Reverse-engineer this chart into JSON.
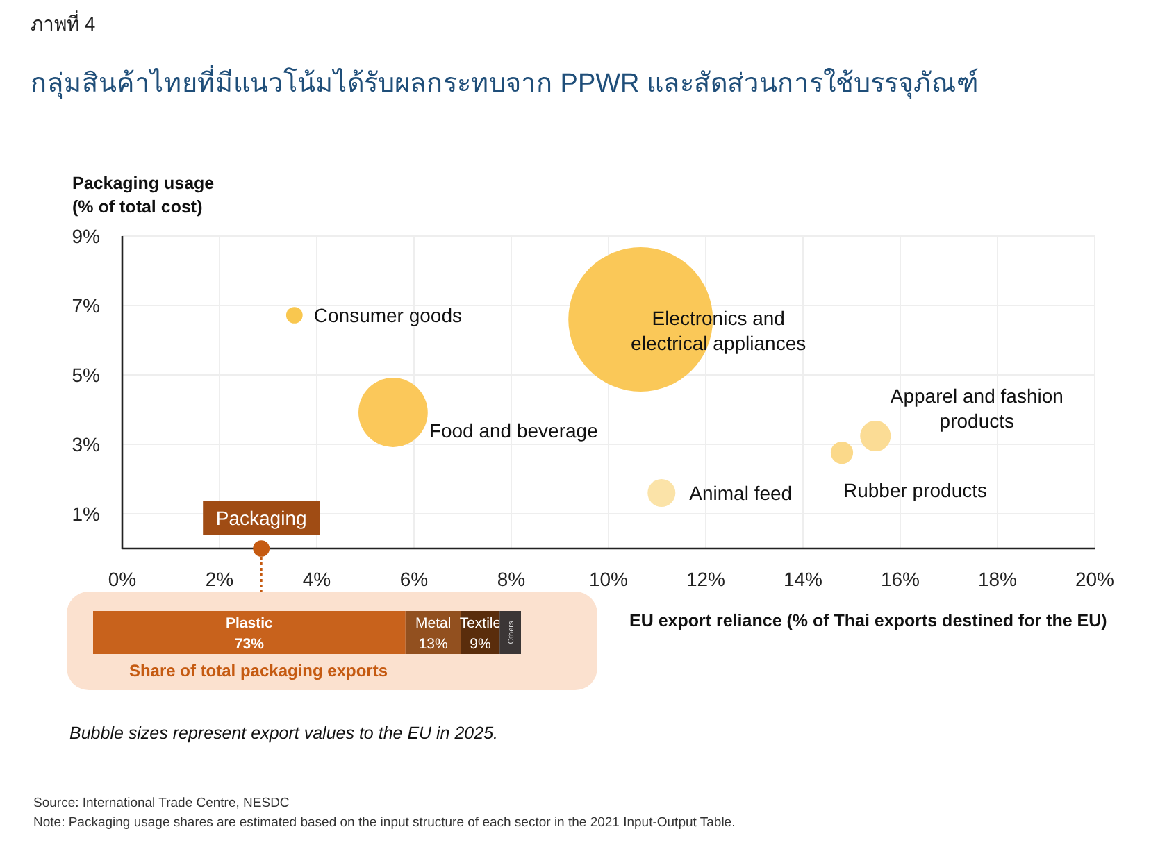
{
  "chart_data": [
    {
      "type": "bubble",
      "title": "กลุ่มสินค้าไทยที่มีแนวโน้มได้รับผลกระทบจาก PPWR และสัดส่วนการใช้บรรจุภัณฑ์",
      "xlabel": "EU export reliance (% of Thai exports destined for the EU)",
      "ylabel": "Packaging usage (% of total cost)",
      "annotations": [
        "ภาพที่ 4",
        "Bubble sizes represent export values to the EU in 2025.",
        "Source: International Trade Centre, NESDC",
        "Note: Packaging usage shares are estimated based on the input structure of each sector in the 2021 Input-Output Table."
      ],
      "xlim": [
        0,
        20
      ],
      "ylim": [
        0,
        9
      ],
      "grid": true,
      "xticks": [
        {
          "value": 0,
          "label": "0%"
        },
        {
          "value": 2,
          "label": "2%"
        },
        {
          "value": 4,
          "label": "4%"
        },
        {
          "value": 6,
          "label": "6%"
        },
        {
          "value": 8,
          "label": "8%"
        },
        {
          "value": 10,
          "label": "10%"
        },
        {
          "value": 12,
          "label": "12%"
        },
        {
          "value": 14,
          "label": "14%"
        },
        {
          "value": 16,
          "label": "16%"
        },
        {
          "value": 18,
          "label": "18%"
        },
        {
          "value": 20,
          "label": "20%"
        }
      ],
      "yticks": [
        {
          "value": 1,
          "label": "1%"
        },
        {
          "value": 3,
          "label": "3%"
        },
        {
          "value": 5,
          "label": "5%"
        },
        {
          "value": 7,
          "label": "7%"
        },
        {
          "value": 9,
          "label": "9%"
        }
      ],
      "series": [
        {
          "name": "Consumer goods",
          "color": "#f9c74f",
          "x": [
            3.54
          ],
          "values": [
            6.72
          ],
          "sizes": [
            0.013
          ]
        },
        {
          "name": "Food and beverage",
          "color": "#fbc85a",
          "x": [
            5.57
          ],
          "values": [
            3.92
          ],
          "sizes": [
            0.23
          ]
        },
        {
          "name": "Electronics and electrical appliances",
          "color": "#fac858",
          "x": [
            10.66
          ],
          "values": [
            6.6
          ],
          "sizes": [
            1
          ]
        },
        {
          "name": "Animal feed",
          "color": "#fbe3a8",
          "x": [
            11.09
          ],
          "values": [
            1.6
          ],
          "sizes": [
            0.037
          ]
        },
        {
          "name": "Rubber products",
          "color": "#fbd98a",
          "x": [
            14.8
          ],
          "values": [
            2.76
          ],
          "sizes": [
            0.024
          ]
        },
        {
          "name": "Apparel and fashion products",
          "color": "#fbdc95",
          "x": [
            15.49
          ],
          "values": [
            3.24
          ],
          "sizes": [
            0.045
          ]
        },
        {
          "name": "Packaging",
          "color": "#c55a11",
          "x": [
            2.86
          ],
          "values": [
            0
          ],
          "sizes": [
            0.013
          ]
        }
      ]
    },
    {
      "type": "bar",
      "orientation": "horizontal",
      "stacked": true,
      "title": "Share of total packaging exports",
      "categories": [
        null
      ],
      "series": [
        {
          "name": "Plastic",
          "color": "#c8621c",
          "values": [
            73
          ],
          "value_labels": [
            "73%"
          ]
        },
        {
          "name": "Metal",
          "color": "#92501f",
          "values": [
            13
          ],
          "value_labels": [
            "13%"
          ]
        },
        {
          "name": "Textile",
          "color": "#5a2d0c",
          "values": [
            9
          ],
          "value_labels": [
            "9%"
          ]
        },
        {
          "name": "Others",
          "color": "#3b3636",
          "values": [
            5
          ],
          "value_labels": [
            null
          ]
        }
      ]
    }
  ]
}
